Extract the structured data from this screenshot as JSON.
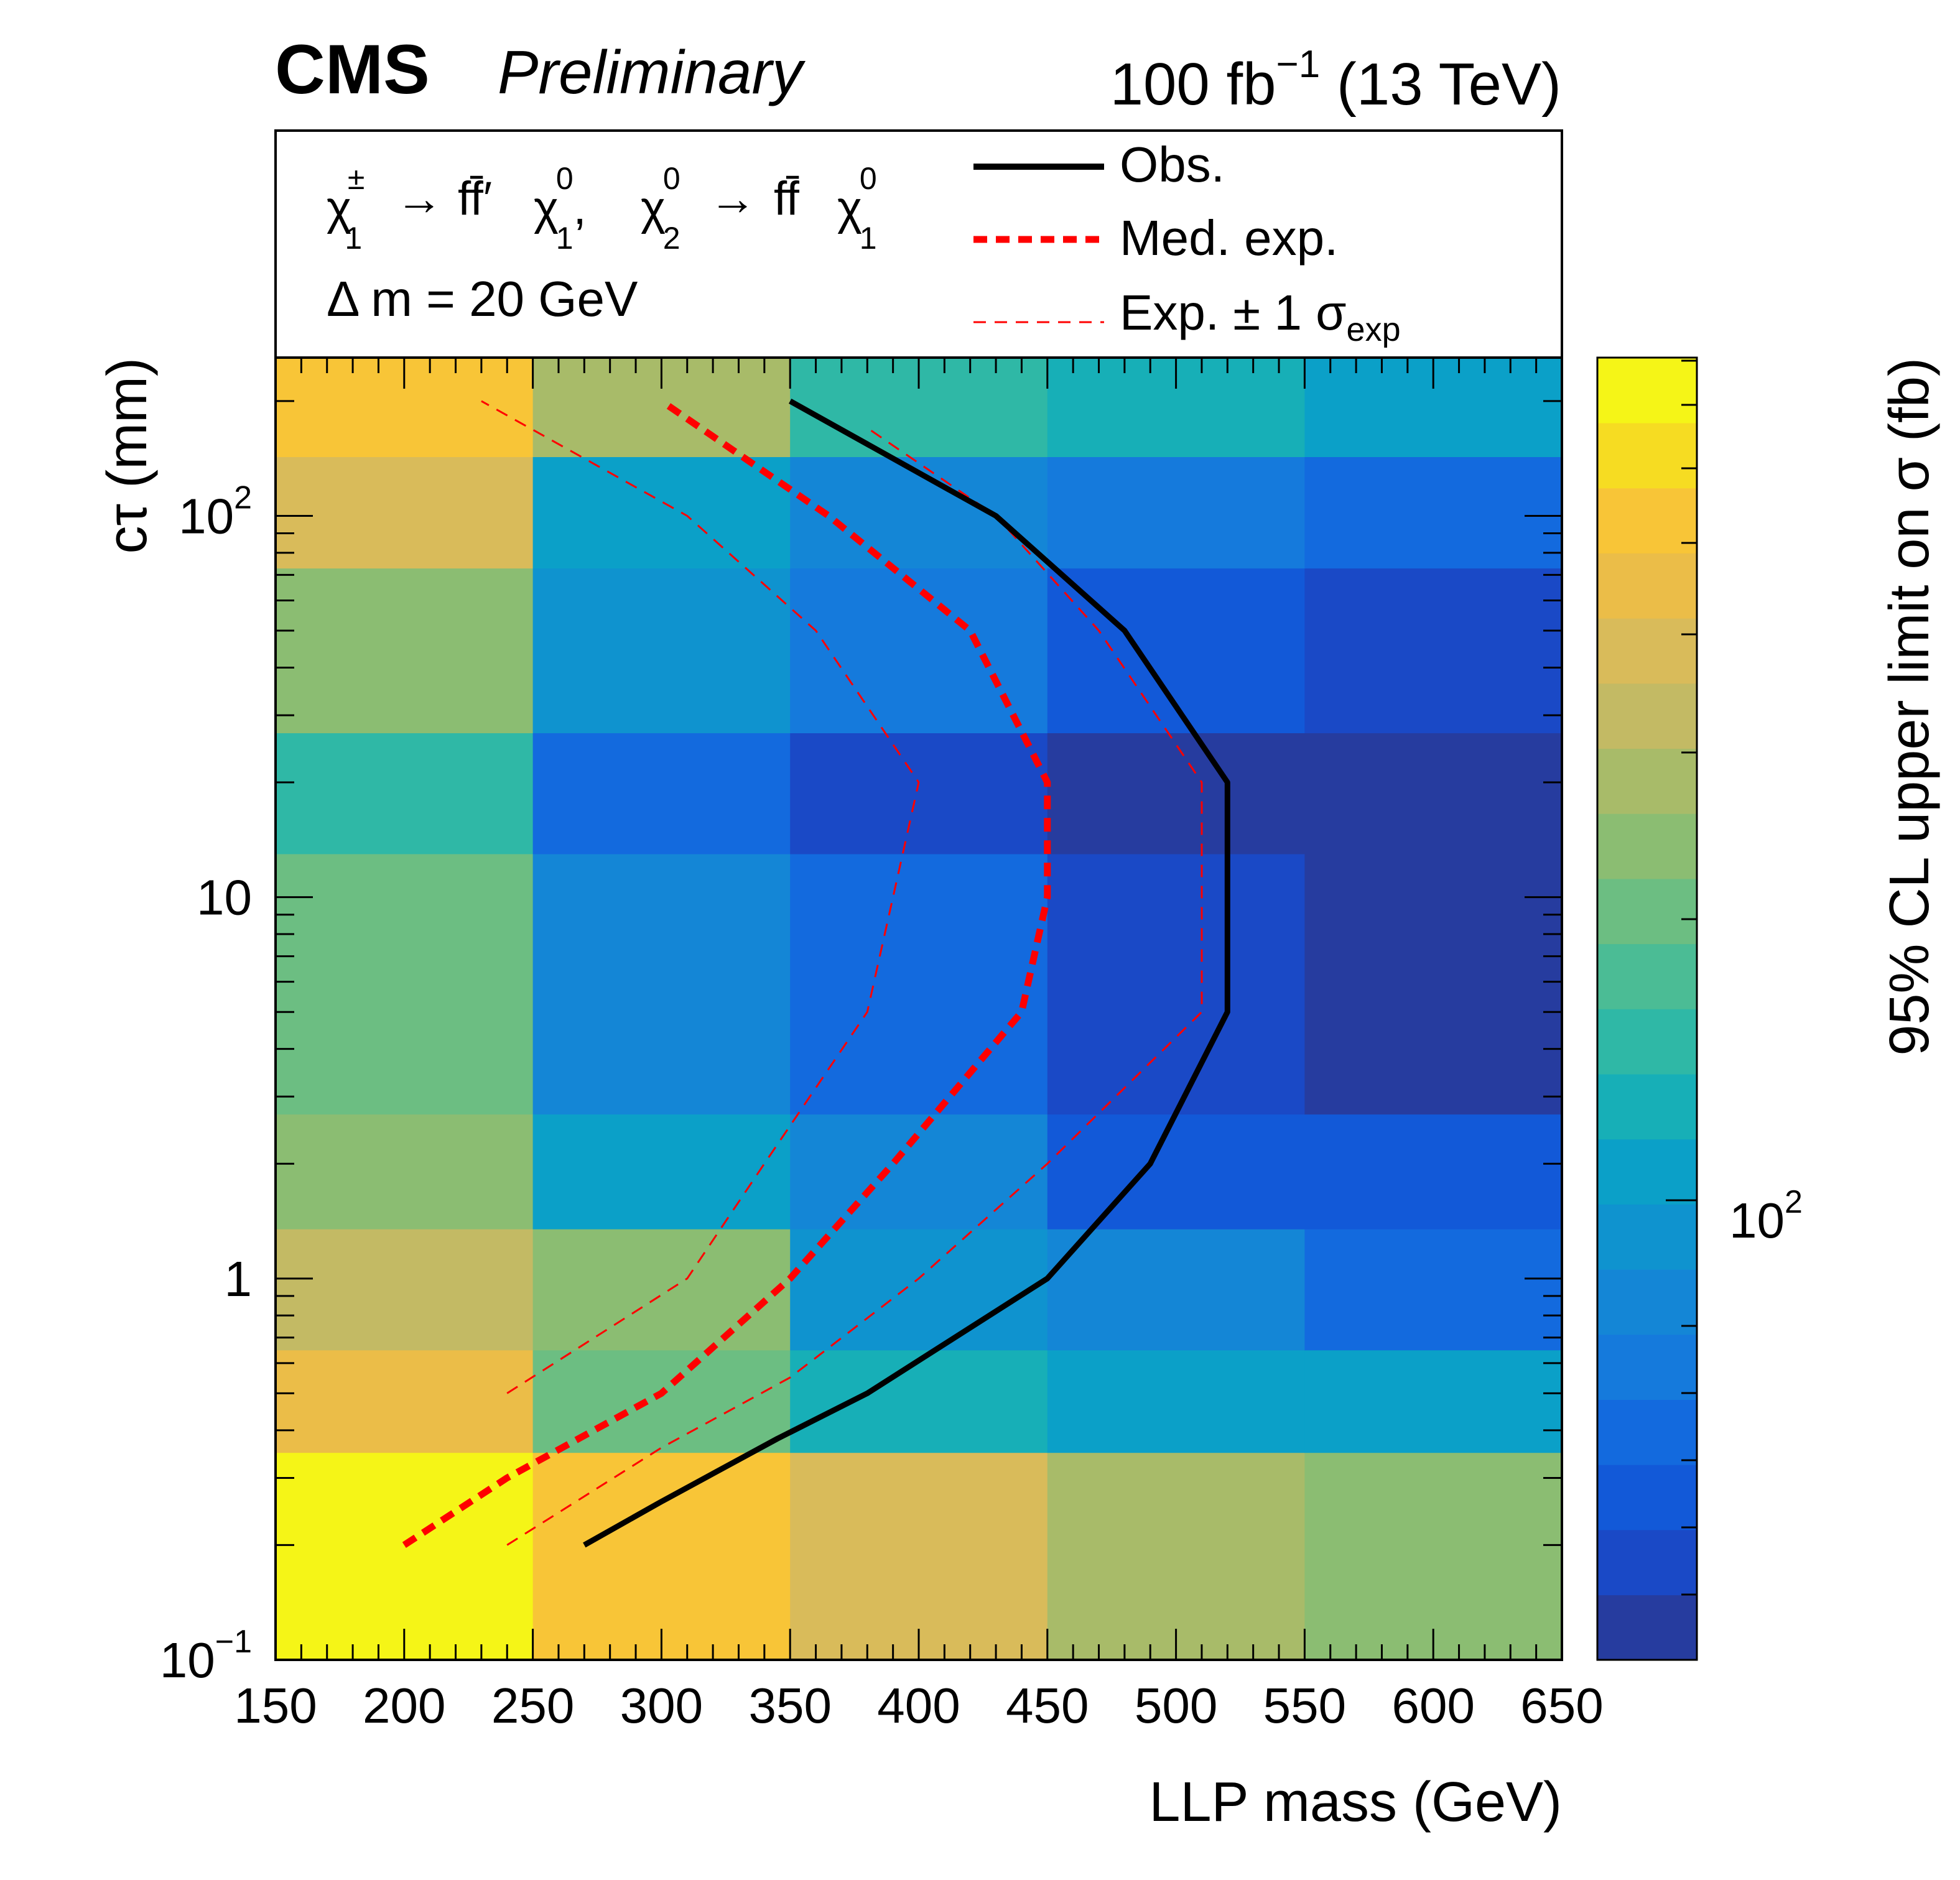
{
  "header": {
    "experiment": "CMS",
    "status": "Preliminary",
    "lumi_value": "100 fb",
    "lumi_exp": "−1",
    "energy": " (13 TeV)"
  },
  "legend": {
    "process": {
      "chi": "χ",
      "pm": "±",
      "one": "1",
      "two": "2",
      "zero": "0",
      "arrow": "→",
      "ffp": "ff̄′",
      "ff": "ff̄",
      "comma": ","
    },
    "delta_m": "Δ m = 20 GeV",
    "obs_label": "Obs.",
    "med_label": "Med. exp.",
    "band_label_main": "Exp. ± 1 σ",
    "band_label_sub": "exp"
  },
  "colorbar": {
    "label": "95% CL upper limit on σ (fb)",
    "tick_base": "10",
    "tick_exp": "2",
    "palette": [
      "#263c9f",
      "#1a49c6",
      "#1259d8",
      "#136ade",
      "#157adc",
      "#1486d6",
      "#0f93cf",
      "#0ba0c8",
      "#17afb7",
      "#2fb8a6",
      "#4bbc95",
      "#6cbe82",
      "#8bbd72",
      "#a8bb69",
      "#c3ba64",
      "#d9bb5a",
      "#ebbd48",
      "#f8c537",
      "#f6dc22",
      "#f5f517"
    ]
  },
  "chart_data": {
    "type": "heatmap",
    "title": "CMS Preliminary",
    "xlabel": "LLP mass (GeV)",
    "ylabel": "cτ (mm)",
    "xlim": [
      150,
      650
    ],
    "ylim": [
      0.1,
      260
    ],
    "yscale": "log",
    "x_ticks": [
      "150",
      "200",
      "250",
      "300",
      "350",
      "400",
      "450",
      "500",
      "550",
      "600",
      "650"
    ],
    "y_ticks": [
      {
        "value": 0.1,
        "base": "10",
        "exp": "−1"
      },
      {
        "value": 1,
        "base": "1",
        "exp": ""
      },
      {
        "value": 10,
        "base": "10",
        "exp": ""
      },
      {
        "value": 100,
        "base": "10",
        "exp": "2"
      }
    ],
    "x_edges": [
      150,
      250,
      350,
      450,
      550,
      650
    ],
    "y_edges": [
      0.1,
      0.35,
      0.65,
      1.35,
      2.7,
      13,
      27,
      73,
      143,
      260
    ],
    "cell_color_index": [
      [
        19,
        17,
        15,
        13,
        12
      ],
      [
        16,
        11,
        8,
        7,
        7
      ],
      [
        14,
        12,
        6,
        5,
        3
      ],
      [
        12,
        7,
        5,
        2,
        2
      ],
      [
        11,
        5,
        3,
        1,
        0
      ],
      [
        9,
        3,
        1,
        0,
        0
      ],
      [
        12,
        6,
        4,
        2,
        1
      ],
      [
        15,
        7,
        5,
        4,
        3
      ],
      [
        17,
        13,
        9,
        8,
        7
      ]
    ],
    "series": [
      {
        "name": "Obs.",
        "style": "solid-black",
        "points": [
          [
            270,
            0.2
          ],
          [
            300,
            0.26
          ],
          [
            345,
            0.38
          ],
          [
            380,
            0.5
          ],
          [
            450,
            1
          ],
          [
            490,
            2
          ],
          [
            520,
            5
          ],
          [
            520,
            20
          ],
          [
            480,
            50
          ],
          [
            430,
            100
          ],
          [
            350,
            200
          ]
        ]
      },
      {
        "name": "Med. exp.",
        "style": "thick-dashed-red",
        "points": [
          [
            200,
            0.2
          ],
          [
            240,
            0.3
          ],
          [
            300,
            0.5
          ],
          [
            350,
            1
          ],
          [
            390,
            2
          ],
          [
            440,
            5
          ],
          [
            450,
            10
          ],
          [
            450,
            20
          ],
          [
            420,
            50
          ],
          [
            365,
            100
          ],
          [
            300,
            200
          ]
        ]
      },
      {
        "name": "Exp. ± 1 σexp (upper)",
        "style": "thin-dashed-red",
        "points": [
          [
            240,
            0.2
          ],
          [
            300,
            0.36
          ],
          [
            350,
            0.55
          ],
          [
            400,
            1
          ],
          [
            450,
            2
          ],
          [
            510,
            5
          ],
          [
            510,
            20
          ],
          [
            470,
            50
          ],
          [
            430,
            100
          ],
          [
            380,
            170
          ]
        ]
      },
      {
        "name": "Exp. ± 1 σexp (lower)",
        "style": "thin-dashed-red",
        "points": [
          [
            240,
            0.5
          ],
          [
            310,
            1
          ],
          [
            340,
            2
          ],
          [
            380,
            5
          ],
          [
            400,
            20
          ],
          [
            360,
            50
          ],
          [
            310,
            100
          ],
          [
            230,
            200
          ]
        ]
      }
    ]
  }
}
